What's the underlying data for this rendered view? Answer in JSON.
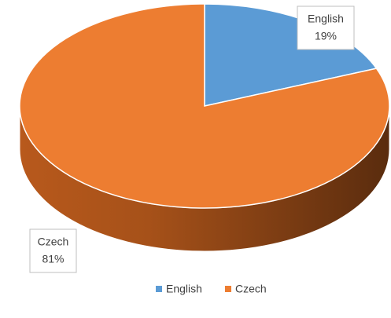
{
  "chart_data": {
    "type": "pie",
    "three_d": true,
    "categories": [
      "English",
      "Czech"
    ],
    "values": [
      19,
      81
    ],
    "value_labels": [
      "19%",
      "81%"
    ],
    "colors": [
      "#5b9bd5",
      "#ed7d31"
    ],
    "legend": "bottom"
  }
}
